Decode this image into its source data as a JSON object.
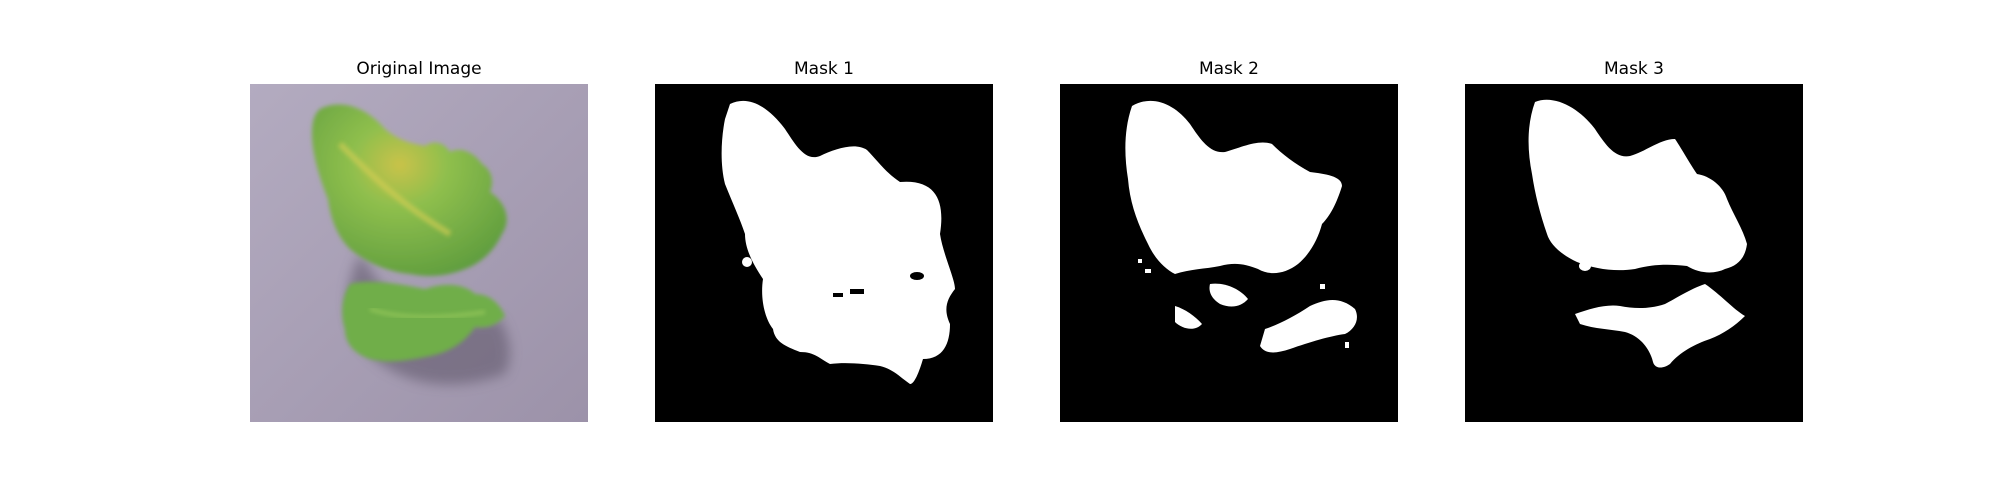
{
  "figure": {
    "panels": [
      {
        "title": "Original Image",
        "kind": "photo",
        "subject": "leaf"
      },
      {
        "title": "Mask 1",
        "kind": "mask"
      },
      {
        "title": "Mask 2",
        "kind": "mask"
      },
      {
        "title": "Mask 3",
        "kind": "mask"
      }
    ]
  },
  "colors": {
    "background_photo": "#a89fb4",
    "leaf_green": "#6fae48",
    "leaf_yellow": "#c9c24a",
    "shadow": "#5b5266",
    "mask_fg": "#ffffff",
    "mask_bg": "#000000"
  }
}
